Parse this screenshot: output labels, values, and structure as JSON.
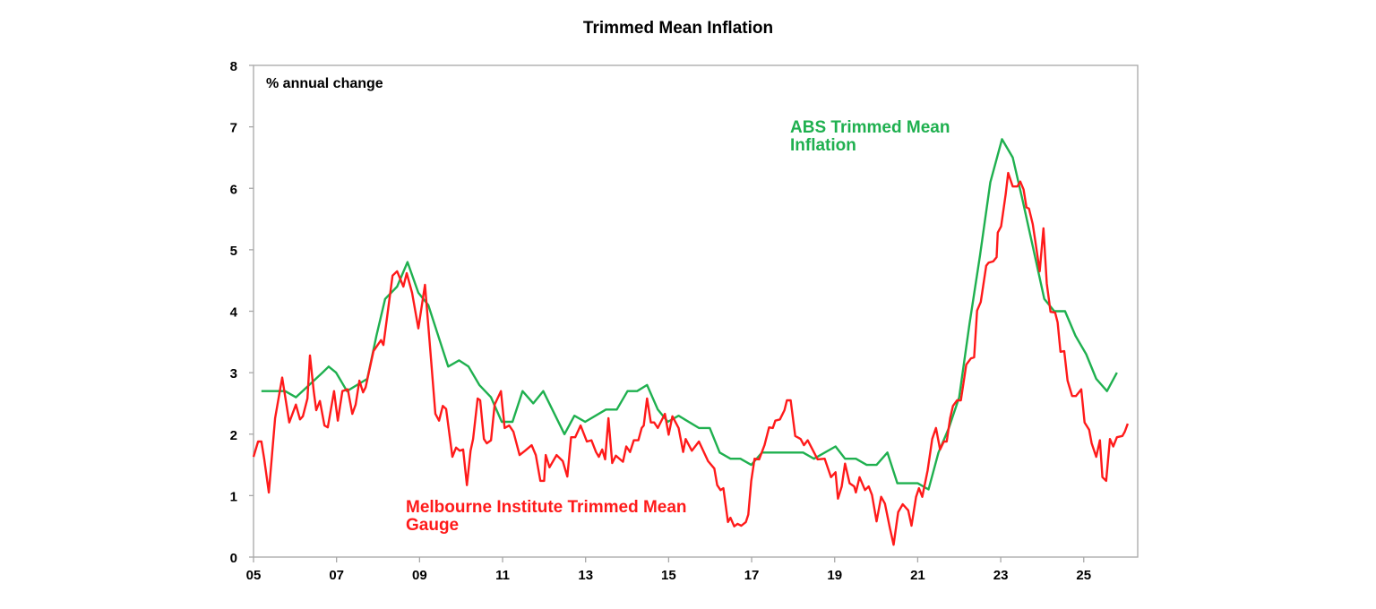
{
  "chart_data": {
    "type": "line",
    "title": "Trimmed Mean Inflation",
    "ylabel": "% annual change",
    "xlabel": "",
    "xlim": [
      2005,
      2026.3
    ],
    "ylim": [
      0,
      8
    ],
    "xticks": [
      2005,
      2007,
      2009,
      2011,
      2013,
      2015,
      2017,
      2019,
      2021,
      2023,
      2025
    ],
    "xtick_labels": [
      "05",
      "07",
      "09",
      "11",
      "13",
      "15",
      "17",
      "19",
      "21",
      "23",
      "25"
    ],
    "yticks": [
      0,
      1,
      2,
      3,
      4,
      5,
      6,
      7,
      8
    ],
    "ytick_labels": [
      "0",
      "1",
      "2",
      "3",
      "4",
      "5",
      "6",
      "7",
      "8"
    ],
    "grid": false,
    "legend": "none (series labelled inline)",
    "series": [
      {
        "name": "ABS Trimmed Mean Inflation",
        "label_lines": [
          "ABS Trimmed Mean",
          "Inflation"
        ],
        "color": "#1fb04f",
        "points": [
          [
            2005.19,
            2.7
          ],
          [
            2005.76,
            2.7
          ],
          [
            2006.02,
            2.6
          ],
          [
            2006.66,
            3.0
          ],
          [
            2006.81,
            3.1
          ],
          [
            2006.99,
            3.0
          ],
          [
            2007.25,
            2.7
          ],
          [
            2007.74,
            2.9
          ],
          [
            2007.96,
            3.6
          ],
          [
            2008.17,
            4.2
          ],
          [
            2008.46,
            4.4
          ],
          [
            2008.71,
            4.8
          ],
          [
            2008.97,
            4.3
          ],
          [
            2009.21,
            4.1
          ],
          [
            2009.69,
            3.1
          ],
          [
            2009.95,
            3.2
          ],
          [
            2010.18,
            3.1
          ],
          [
            2010.44,
            2.8
          ],
          [
            2010.72,
            2.6
          ],
          [
            2010.98,
            2.2
          ],
          [
            2011.24,
            2.2
          ],
          [
            2011.48,
            2.7
          ],
          [
            2011.74,
            2.5
          ],
          [
            2011.98,
            2.7
          ],
          [
            2012.49,
            2.0
          ],
          [
            2012.73,
            2.3
          ],
          [
            2012.99,
            2.2
          ],
          [
            2013.49,
            2.4
          ],
          [
            2013.75,
            2.4
          ],
          [
            2014.01,
            2.7
          ],
          [
            2014.24,
            2.7
          ],
          [
            2014.48,
            2.8
          ],
          [
            2014.74,
            2.4
          ],
          [
            2014.98,
            2.2
          ],
          [
            2015.24,
            2.3
          ],
          [
            2015.73,
            2.1
          ],
          [
            2015.99,
            2.1
          ],
          [
            2016.23,
            1.7
          ],
          [
            2016.49,
            1.6
          ],
          [
            2016.73,
            1.6
          ],
          [
            2016.99,
            1.5
          ],
          [
            2017.25,
            1.7
          ],
          [
            2018.24,
            1.7
          ],
          [
            2018.5,
            1.6
          ],
          [
            2019.02,
            1.8
          ],
          [
            2019.25,
            1.6
          ],
          [
            2019.51,
            1.6
          ],
          [
            2019.77,
            1.5
          ],
          [
            2020.01,
            1.5
          ],
          [
            2020.27,
            1.7
          ],
          [
            2020.51,
            1.2
          ],
          [
            2021.0,
            1.2
          ],
          [
            2021.26,
            1.1
          ],
          [
            2021.5,
            1.7
          ],
          [
            2021.75,
            2.1
          ],
          [
            2022.0,
            2.6
          ],
          [
            2022.25,
            3.8
          ],
          [
            2022.5,
            4.9
          ],
          [
            2022.75,
            6.1
          ],
          [
            2023.03,
            6.8
          ],
          [
            2023.29,
            6.5
          ],
          [
            2023.53,
            5.8
          ],
          [
            2023.79,
            5.0
          ],
          [
            2024.05,
            4.2
          ],
          [
            2024.29,
            4.0
          ],
          [
            2024.55,
            4.0
          ],
          [
            2024.8,
            3.6
          ],
          [
            2025.06,
            3.3
          ],
          [
            2025.3,
            2.9
          ],
          [
            2025.56,
            2.7
          ],
          [
            2025.8,
            3.0
          ]
        ]
      },
      {
        "name": "Melbourne Institute Trimmed Mean Gauge",
        "label_lines": [
          "Melbourne Institute Trimmed Mean",
          "Gauge"
        ],
        "color": "#ff1a1a",
        "points": [
          [
            2005.0,
            1.63
          ],
          [
            2005.11,
            1.88
          ],
          [
            2005.19,
            1.88
          ],
          [
            2005.26,
            1.59
          ],
          [
            2005.37,
            1.05
          ],
          [
            2005.52,
            2.26
          ],
          [
            2005.69,
            2.92
          ],
          [
            2005.86,
            2.19
          ],
          [
            2006.02,
            2.48
          ],
          [
            2006.12,
            2.24
          ],
          [
            2006.19,
            2.29
          ],
          [
            2006.3,
            2.58
          ],
          [
            2006.36,
            3.28
          ],
          [
            2006.45,
            2.7
          ],
          [
            2006.51,
            2.39
          ],
          [
            2006.6,
            2.54
          ],
          [
            2006.71,
            2.14
          ],
          [
            2006.79,
            2.11
          ],
          [
            2006.94,
            2.7
          ],
          [
            2007.03,
            2.22
          ],
          [
            2007.14,
            2.7
          ],
          [
            2007.27,
            2.73
          ],
          [
            2007.38,
            2.33
          ],
          [
            2007.46,
            2.48
          ],
          [
            2007.55,
            2.87
          ],
          [
            2007.64,
            2.68
          ],
          [
            2007.7,
            2.76
          ],
          [
            2007.89,
            3.35
          ],
          [
            2008.07,
            3.53
          ],
          [
            2008.13,
            3.45
          ],
          [
            2008.35,
            4.58
          ],
          [
            2008.46,
            4.65
          ],
          [
            2008.61,
            4.4
          ],
          [
            2008.69,
            4.62
          ],
          [
            2008.82,
            4.3
          ],
          [
            2008.97,
            3.72
          ],
          [
            2009.13,
            4.43
          ],
          [
            2009.28,
            3.19
          ],
          [
            2009.38,
            2.33
          ],
          [
            2009.47,
            2.22
          ],
          [
            2009.56,
            2.46
          ],
          [
            2009.64,
            2.41
          ],
          [
            2009.79,
            1.63
          ],
          [
            2009.88,
            1.78
          ],
          [
            2009.97,
            1.73
          ],
          [
            2010.05,
            1.75
          ],
          [
            2010.14,
            1.17
          ],
          [
            2010.23,
            1.73
          ],
          [
            2010.29,
            1.92
          ],
          [
            2010.4,
            2.58
          ],
          [
            2010.46,
            2.55
          ],
          [
            2010.55,
            1.92
          ],
          [
            2010.62,
            1.85
          ],
          [
            2010.72,
            1.9
          ],
          [
            2010.81,
            2.48
          ],
          [
            2010.96,
            2.7
          ],
          [
            2011.05,
            2.1
          ],
          [
            2011.16,
            2.14
          ],
          [
            2011.26,
            2.04
          ],
          [
            2011.41,
            1.66
          ],
          [
            2011.54,
            1.73
          ],
          [
            2011.7,
            1.82
          ],
          [
            2011.8,
            1.66
          ],
          [
            2011.91,
            1.24
          ],
          [
            2012.0,
            1.24
          ],
          [
            2012.04,
            1.66
          ],
          [
            2012.13,
            1.46
          ],
          [
            2012.3,
            1.66
          ],
          [
            2012.45,
            1.56
          ],
          [
            2012.56,
            1.31
          ],
          [
            2012.65,
            1.95
          ],
          [
            2012.75,
            1.95
          ],
          [
            2012.88,
            2.14
          ],
          [
            2013.03,
            1.88
          ],
          [
            2013.14,
            1.9
          ],
          [
            2013.25,
            1.71
          ],
          [
            2013.32,
            1.63
          ],
          [
            2013.4,
            1.75
          ],
          [
            2013.47,
            1.59
          ],
          [
            2013.55,
            2.26
          ],
          [
            2013.64,
            1.53
          ],
          [
            2013.73,
            1.65
          ],
          [
            2013.9,
            1.55
          ],
          [
            2013.98,
            1.8
          ],
          [
            2014.07,
            1.71
          ],
          [
            2014.16,
            1.9
          ],
          [
            2014.27,
            1.9
          ],
          [
            2014.35,
            2.1
          ],
          [
            2014.4,
            2.14
          ],
          [
            2014.48,
            2.58
          ],
          [
            2014.57,
            2.19
          ],
          [
            2014.65,
            2.19
          ],
          [
            2014.74,
            2.1
          ],
          [
            2014.91,
            2.33
          ],
          [
            2015.0,
            1.99
          ],
          [
            2015.09,
            2.29
          ],
          [
            2015.24,
            2.1
          ],
          [
            2015.35,
            1.71
          ],
          [
            2015.41,
            1.92
          ],
          [
            2015.56,
            1.73
          ],
          [
            2015.73,
            1.88
          ],
          [
            2015.95,
            1.56
          ],
          [
            2016.1,
            1.44
          ],
          [
            2016.17,
            1.17
          ],
          [
            2016.25,
            1.09
          ],
          [
            2016.32,
            1.12
          ],
          [
            2016.43,
            0.57
          ],
          [
            2016.49,
            0.64
          ],
          [
            2016.58,
            0.5
          ],
          [
            2016.66,
            0.54
          ],
          [
            2016.75,
            0.51
          ],
          [
            2016.86,
            0.57
          ],
          [
            2016.92,
            0.69
          ],
          [
            2016.99,
            1.24
          ],
          [
            2017.07,
            1.6
          ],
          [
            2017.18,
            1.59
          ],
          [
            2017.31,
            1.82
          ],
          [
            2017.42,
            2.11
          ],
          [
            2017.51,
            2.1
          ],
          [
            2017.57,
            2.22
          ],
          [
            2017.68,
            2.24
          ],
          [
            2017.79,
            2.39
          ],
          [
            2017.85,
            2.55
          ],
          [
            2017.94,
            2.55
          ],
          [
            2018.05,
            1.97
          ],
          [
            2018.18,
            1.92
          ],
          [
            2018.26,
            1.82
          ],
          [
            2018.35,
            1.9
          ],
          [
            2018.59,
            1.59
          ],
          [
            2018.76,
            1.6
          ],
          [
            2018.91,
            1.3
          ],
          [
            2019.02,
            1.38
          ],
          [
            2019.08,
            0.95
          ],
          [
            2019.17,
            1.15
          ],
          [
            2019.25,
            1.52
          ],
          [
            2019.36,
            1.2
          ],
          [
            2019.47,
            1.15
          ],
          [
            2019.51,
            1.05
          ],
          [
            2019.6,
            1.3
          ],
          [
            2019.73,
            1.09
          ],
          [
            2019.82,
            1.15
          ],
          [
            2019.9,
            1.01
          ],
          [
            2020.01,
            0.58
          ],
          [
            2020.12,
            0.98
          ],
          [
            2020.21,
            0.87
          ],
          [
            2020.33,
            0.47
          ],
          [
            2020.42,
            0.2
          ],
          [
            2020.53,
            0.73
          ],
          [
            2020.64,
            0.86
          ],
          [
            2020.77,
            0.76
          ],
          [
            2020.85,
            0.51
          ],
          [
            2020.96,
            0.98
          ],
          [
            2021.03,
            1.12
          ],
          [
            2021.11,
            0.98
          ],
          [
            2021.24,
            1.41
          ],
          [
            2021.35,
            1.92
          ],
          [
            2021.44,
            2.1
          ],
          [
            2021.54,
            1.75
          ],
          [
            2021.63,
            1.88
          ],
          [
            2021.7,
            1.88
          ],
          [
            2021.78,
            2.26
          ],
          [
            2021.85,
            2.46
          ],
          [
            2021.95,
            2.55
          ],
          [
            2022.04,
            2.55
          ],
          [
            2022.17,
            3.13
          ],
          [
            2022.28,
            3.23
          ],
          [
            2022.36,
            3.25
          ],
          [
            2022.43,
            4.01
          ],
          [
            2022.52,
            4.15
          ],
          [
            2022.65,
            4.74
          ],
          [
            2022.71,
            4.79
          ],
          [
            2022.82,
            4.81
          ],
          [
            2022.9,
            4.88
          ],
          [
            2022.93,
            5.28
          ],
          [
            2023.01,
            5.38
          ],
          [
            2023.12,
            5.9
          ],
          [
            2023.18,
            6.25
          ],
          [
            2023.29,
            6.03
          ],
          [
            2023.4,
            6.03
          ],
          [
            2023.47,
            6.11
          ],
          [
            2023.55,
            5.98
          ],
          [
            2023.62,
            5.69
          ],
          [
            2023.68,
            5.67
          ],
          [
            2023.77,
            5.42
          ],
          [
            2023.83,
            5.16
          ],
          [
            2023.94,
            4.65
          ],
          [
            2024.03,
            5.35
          ],
          [
            2024.11,
            4.45
          ],
          [
            2024.2,
            3.99
          ],
          [
            2024.31,
            3.98
          ],
          [
            2024.37,
            3.82
          ],
          [
            2024.44,
            3.34
          ],
          [
            2024.53,
            3.35
          ],
          [
            2024.61,
            2.87
          ],
          [
            2024.72,
            2.62
          ],
          [
            2024.81,
            2.62
          ],
          [
            2024.94,
            2.73
          ],
          [
            2025.02,
            2.19
          ],
          [
            2025.13,
            2.07
          ],
          [
            2025.19,
            1.85
          ],
          [
            2025.3,
            1.63
          ],
          [
            2025.39,
            1.9
          ],
          [
            2025.45,
            1.3
          ],
          [
            2025.54,
            1.24
          ],
          [
            2025.63,
            1.92
          ],
          [
            2025.71,
            1.8
          ],
          [
            2025.8,
            1.95
          ],
          [
            2025.93,
            1.97
          ],
          [
            2025.99,
            2.04
          ],
          [
            2026.06,
            2.17
          ]
        ]
      }
    ]
  }
}
